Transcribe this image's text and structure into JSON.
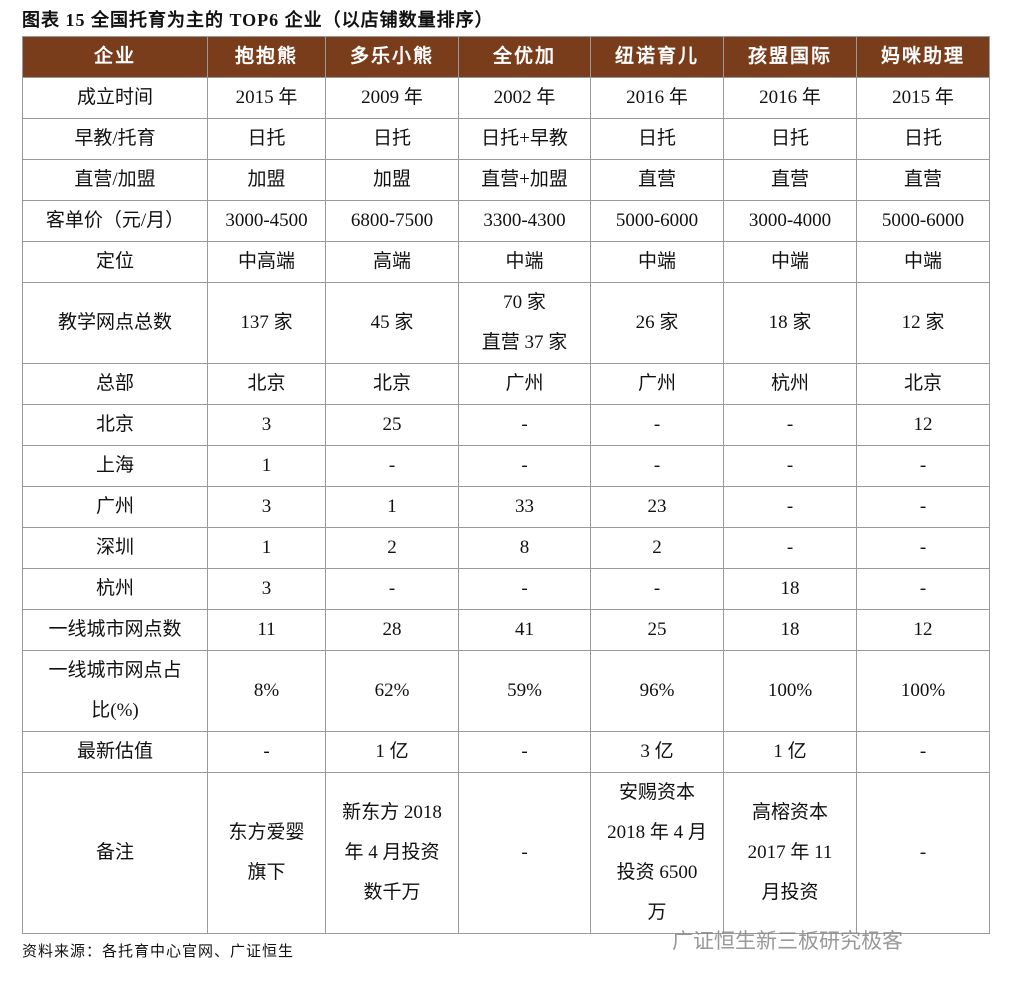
{
  "header": {
    "title": "图表 15 全国托育为主的 TOP6 企业（以店铺数量排序）"
  },
  "table": {
    "columns": [
      "企业",
      "抱抱熊",
      "多乐小熊",
      "全优加",
      "纽诺育儿",
      "孩盟国际",
      "妈咪助理"
    ],
    "rows": [
      [
        "成立时间",
        "2015 年",
        "2009 年",
        "2002 年",
        "2016 年",
        "2016 年",
        "2015 年"
      ],
      [
        "早教/托育",
        "日托",
        "日托",
        "日托+早教",
        "日托",
        "日托",
        "日托"
      ],
      [
        "直营/加盟",
        "加盟",
        "加盟",
        "直营+加盟",
        "直营",
        "直营",
        "直营"
      ],
      [
        "客单价（元/月）",
        "3000-4500",
        "6800-7500",
        "3300-4300",
        "5000-6000",
        "3000-4000",
        "5000-6000"
      ],
      [
        "定位",
        "中高端",
        "高端",
        "中端",
        "中端",
        "中端",
        "中端"
      ],
      [
        "教学网点总数",
        "137 家",
        "45 家",
        [
          "70 家",
          "直营 37 家"
        ],
        "26 家",
        "18 家",
        "12 家"
      ],
      [
        "总部",
        "北京",
        "北京",
        "广州",
        "广州",
        "杭州",
        "北京"
      ],
      [
        "北京",
        "3",
        "25",
        "-",
        "-",
        "-",
        "12"
      ],
      [
        "上海",
        "1",
        "-",
        "-",
        "-",
        "-",
        "-"
      ],
      [
        "广州",
        "3",
        "1",
        "33",
        "23",
        "-",
        "-"
      ],
      [
        "深圳",
        "1",
        "2",
        "8",
        "2",
        "-",
        "-"
      ],
      [
        "杭州",
        "3",
        "-",
        "-",
        "-",
        "18",
        "-"
      ],
      [
        "一线城市网点数",
        "11",
        "28",
        "41",
        "25",
        "18",
        "12"
      ],
      [
        [
          "一线城市网点占",
          "比(%)"
        ],
        "8%",
        "62%",
        "59%",
        "96%",
        "100%",
        "100%"
      ],
      [
        "最新估值",
        "-",
        "1 亿",
        "-",
        "3 亿",
        "1 亿",
        "-"
      ],
      [
        "备注",
        [
          "东方爱婴",
          "旗下"
        ],
        [
          "新东方 2018",
          "年 4 月投资",
          "数千万"
        ],
        "-",
        [
          "安赐资本",
          "2018 年 4 月",
          "投资 6500",
          "万"
        ],
        [
          "高榕资本",
          "2017 年 11",
          "月投资"
        ],
        "-"
      ]
    ]
  },
  "footer": {
    "source": "资料来源：各托育中心官网、广证恒生",
    "watermark": "广证恒生新三板研究极客"
  }
}
